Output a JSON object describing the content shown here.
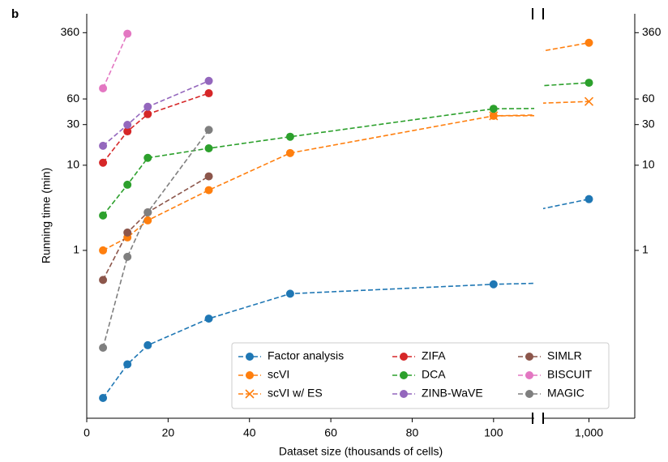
{
  "chart_data": {
    "type": "line",
    "panel_label": "b",
    "xlabel": "Dataset size (thousands of cells)",
    "ylabel": "Running time (min)",
    "xlim": [
      0,
      110
    ],
    "xticks": [
      0,
      20,
      40,
      60,
      80,
      100
    ],
    "x2lim": [
      900,
      1100
    ],
    "x2ticks": [
      {
        "value": 1000,
        "label": "1,000"
      }
    ],
    "ylim": [
      0.0107,
      600
    ],
    "log_y": true,
    "yticks": [
      1,
      10,
      30,
      60,
      360
    ],
    "legend": "lower right",
    "series": [
      {
        "name": "Factor analysis",
        "color": "#1f77b4",
        "marker": "o",
        "x": [
          4,
          10,
          15,
          30,
          50,
          100,
          1000
        ],
        "values": [
          0.0185,
          0.046,
          0.077,
          0.158,
          0.31,
          0.4,
          4.0
        ]
      },
      {
        "name": "scVI",
        "color": "#ff7f0e",
        "marker": "o",
        "x": [
          4,
          10,
          15,
          30,
          50,
          100,
          1000
        ],
        "values": [
          1.0,
          1.42,
          2.25,
          5.1,
          13.9,
          38,
          274
        ]
      },
      {
        "name": "scVI w/ ES",
        "color": "#ff7f0e",
        "marker": "x",
        "x": [
          100,
          1000
        ],
        "values": [
          38,
          56
        ]
      },
      {
        "name": "ZIFA",
        "color": "#d62728",
        "marker": "o",
        "x": [
          4,
          10,
          15,
          30
        ],
        "values": [
          10.7,
          25,
          39.8,
          70
        ]
      },
      {
        "name": "DCA",
        "color": "#2ca02c",
        "marker": "o",
        "x": [
          4,
          10,
          15,
          30,
          50,
          100,
          1000
        ],
        "values": [
          2.57,
          5.9,
          12.2,
          15.8,
          21.6,
          46,
          93
        ]
      },
      {
        "name": "ZINB-WaVE",
        "color": "#9467bd",
        "marker": "o",
        "x": [
          4,
          10,
          15,
          30
        ],
        "values": [
          16.9,
          29.8,
          48.5,
          97.8
        ]
      },
      {
        "name": "SIMLR",
        "color": "#8c564b",
        "marker": "o",
        "x": [
          4,
          10,
          15,
          30
        ],
        "values": [
          0.45,
          1.62,
          2.8,
          7.4
        ]
      },
      {
        "name": "BISCUIT",
        "color": "#e377c2",
        "marker": "o",
        "x": [
          4,
          10
        ],
        "values": [
          80,
          350
        ]
      },
      {
        "name": "MAGIC",
        "color": "#7f7f7f",
        "marker": "o",
        "x": [
          4,
          10,
          15,
          30
        ],
        "values": [
          0.072,
          0.84,
          2.8,
          26
        ]
      }
    ]
  }
}
